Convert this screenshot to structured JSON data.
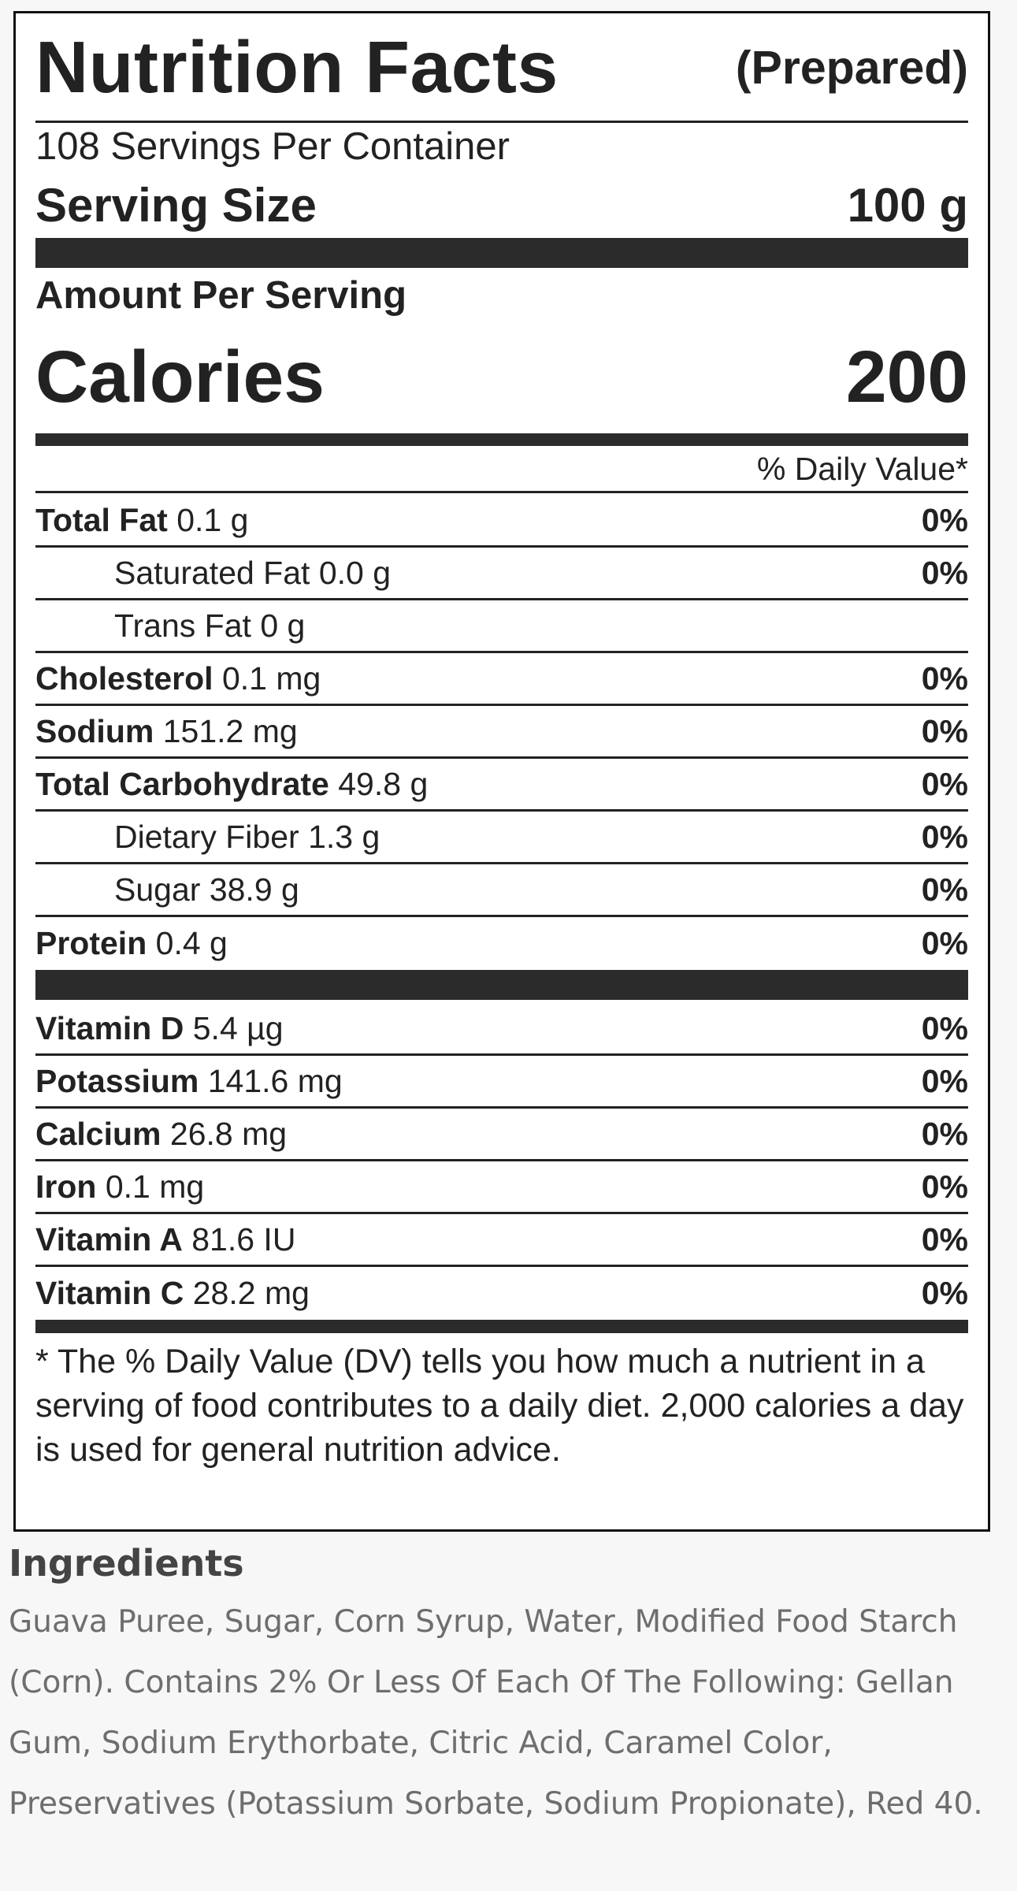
{
  "label": {
    "title": "Nutrition Facts",
    "prepared": "(Prepared)",
    "servings_per_container": "108 Servings Per Container",
    "serving_size_label": "Serving Size",
    "serving_size_value": "100 g",
    "amount_per_serving": "Amount Per Serving",
    "calories_label": "Calories",
    "calories_value": "200",
    "daily_value_header": "% Daily Value*",
    "nutrients": [
      {
        "name": "Total Fat",
        "amount": "0.1 g",
        "dv": "0%",
        "indent": false
      },
      {
        "name": "Saturated Fat",
        "amount": "0.0 g",
        "dv": "0%",
        "indent": true
      },
      {
        "name": "Trans Fat",
        "amount": "0 g",
        "dv": "",
        "indent": true
      },
      {
        "name": "Cholesterol",
        "amount": "0.1 mg",
        "dv": "0%",
        "indent": false
      },
      {
        "name": "Sodium",
        "amount": "151.2 mg",
        "dv": "0%",
        "indent": false
      },
      {
        "name": "Total Carbohydrate",
        "amount": "49.8 g",
        "dv": "0%",
        "indent": false
      },
      {
        "name": "Dietary Fiber",
        "amount": "1.3 g",
        "dv": "0%",
        "indent": true
      },
      {
        "name": "Sugar",
        "amount": "38.9 g",
        "dv": "0%",
        "indent": true
      },
      {
        "name": "Protein",
        "amount": "0.4 g",
        "dv": "0%",
        "indent": false
      }
    ],
    "vitamins": [
      {
        "name": "Vitamin D",
        "amount": "5.4 µg",
        "dv": "0%"
      },
      {
        "name": "Potassium",
        "amount": "141.6 mg",
        "dv": "0%"
      },
      {
        "name": "Calcium",
        "amount": "26.8 mg",
        "dv": "0%"
      },
      {
        "name": "Iron",
        "amount": "0.1 mg",
        "dv": "0%"
      },
      {
        "name": "Vitamin A",
        "amount": "81.6 IU",
        "dv": "0%"
      },
      {
        "name": "Vitamin C",
        "amount": "28.2 mg",
        "dv": "0%"
      }
    ],
    "footnote": "* The % Daily Value (DV) tells you how much a nutrient in a serving of food contributes to a daily diet. 2,000 calories a day is used for general nutrition advice."
  },
  "ingredients": {
    "title": "Ingredients",
    "text": "Guava Puree, Sugar, Corn Syrup, Water, Modified Food Starch (Corn). Contains 2% Or Less Of Each Of The Following: Gellan Gum, Sodium Erythorbate, Citric Acid, Caramel Color, Preservatives (Potassium Sorbate, Sodium Propionate), Red 40."
  },
  "colors": {
    "label_text": "#222222",
    "rule": "#2b2b2b",
    "page_background": "#f7f7f7",
    "ingredients_text": "#6e6e6e"
  }
}
